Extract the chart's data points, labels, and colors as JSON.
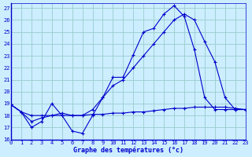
{
  "bg_color": "#cceeff",
  "grid_color": "#99cccc",
  "line_color": "#0000cc",
  "xlabel": "Graphe des températures (°c)",
  "xlim": [
    0,
    23
  ],
  "ylim": [
    16,
    27.4
  ],
  "xticks": [
    0,
    1,
    2,
    3,
    4,
    5,
    6,
    7,
    8,
    9,
    10,
    11,
    12,
    13,
    14,
    15,
    16,
    17,
    18,
    19,
    20,
    21,
    22,
    23
  ],
  "yticks": [
    16,
    17,
    18,
    19,
    20,
    21,
    22,
    23,
    24,
    25,
    26,
    27
  ],
  "series": [
    {
      "x": [
        0,
        1,
        2,
        3,
        4,
        5,
        6,
        7,
        8,
        9,
        10,
        11,
        12,
        13,
        14,
        15,
        16,
        17,
        18,
        19,
        20,
        21,
        22,
        23
      ],
      "y": [
        18.9,
        18.3,
        17.0,
        17.5,
        19.0,
        18.0,
        16.7,
        16.5,
        18.0,
        19.5,
        21.2,
        21.2,
        23.1,
        25.0,
        25.3,
        26.5,
        27.2,
        26.3,
        23.5,
        19.5,
        18.5,
        18.5,
        18.5,
        18.5
      ]
    },
    {
      "x": [
        0,
        1,
        2,
        3,
        4,
        5,
        6,
        7,
        8,
        9,
        10,
        11,
        12,
        13,
        14,
        15,
        16,
        17,
        18,
        19,
        20,
        21,
        22,
        23
      ],
      "y": [
        18.9,
        18.3,
        17.5,
        17.8,
        18.0,
        18.2,
        18.0,
        18.0,
        18.5,
        19.5,
        20.5,
        21.0,
        22.0,
        23.0,
        24.0,
        25.0,
        26.0,
        26.5,
        26.0,
        24.2,
        22.5,
        19.5,
        18.5,
        18.5
      ]
    },
    {
      "x": [
        0,
        1,
        2,
        3,
        4,
        5,
        6,
        7,
        8,
        9,
        10,
        11,
        12,
        13,
        14,
        15,
        16,
        17,
        18,
        19,
        20,
        21,
        22,
        23
      ],
      "y": [
        18.9,
        18.3,
        18.0,
        18.0,
        18.0,
        18.0,
        18.0,
        18.0,
        18.1,
        18.1,
        18.2,
        18.2,
        18.3,
        18.3,
        18.4,
        18.5,
        18.6,
        18.6,
        18.7,
        18.7,
        18.7,
        18.7,
        18.6,
        18.5
      ]
    }
  ],
  "tick_fontsize": 5,
  "xlabel_fontsize": 6,
  "xlabel_fontweight": "bold"
}
